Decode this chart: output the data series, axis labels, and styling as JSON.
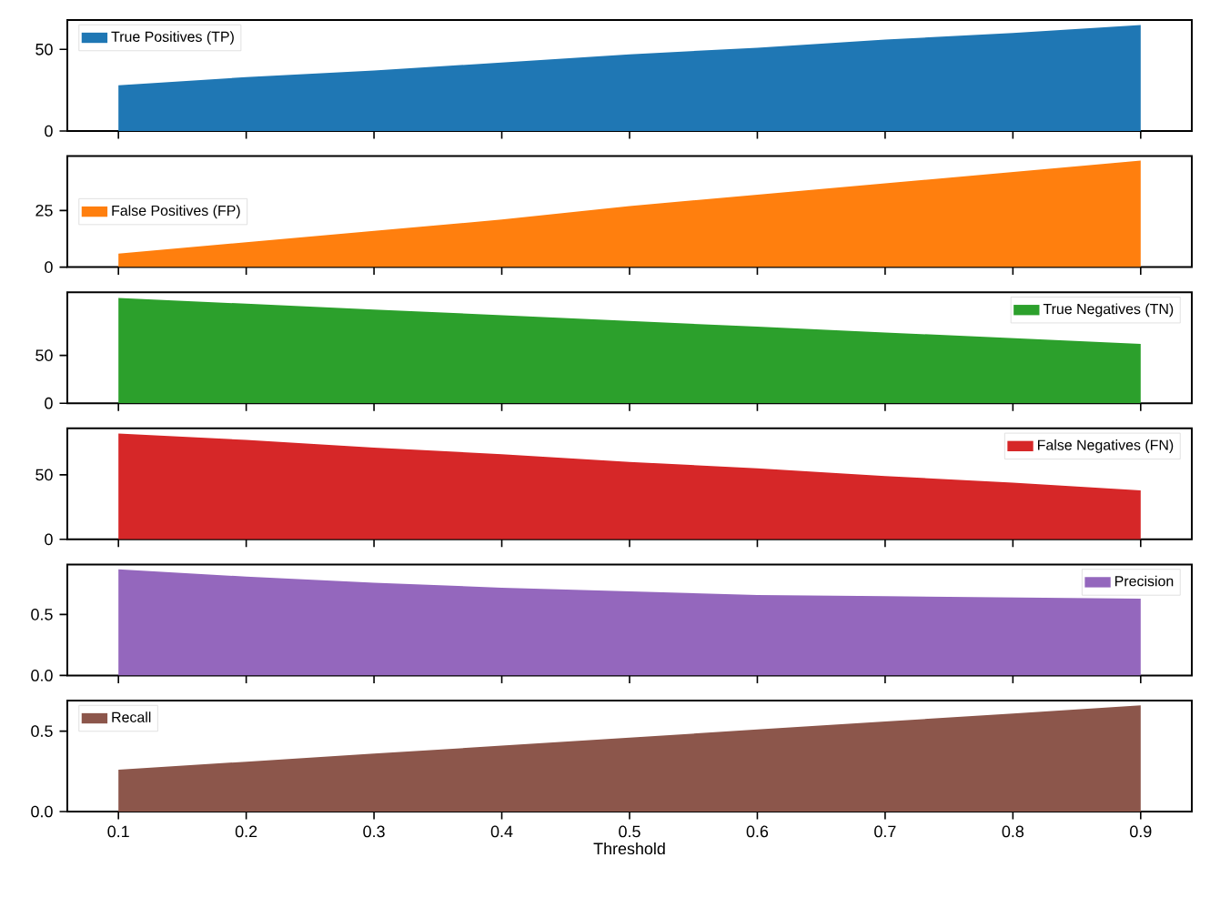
{
  "chart_data": [
    {
      "type": "area",
      "x": [
        0.1,
        0.2,
        0.3,
        0.4,
        0.5,
        0.6,
        0.7,
        0.8,
        0.9
      ],
      "xlim": [
        0.06,
        0.94
      ],
      "xticks": [
        0.1,
        0.2,
        0.3,
        0.4,
        0.5,
        0.6,
        0.7,
        0.8,
        0.9
      ],
      "ylim": [
        0,
        68
      ],
      "yticks": [
        0,
        50
      ],
      "tick_labels": "y",
      "legend": "upper left",
      "series": [
        {
          "name": "True Positives (TP)",
          "color": "#1f77b4",
          "values": [
            28,
            33,
            37,
            42,
            47,
            51,
            56,
            60,
            65
          ]
        }
      ]
    },
    {
      "type": "area",
      "x": [
        0.1,
        0.2,
        0.3,
        0.4,
        0.5,
        0.6,
        0.7,
        0.8,
        0.9
      ],
      "xlim": [
        0.06,
        0.94
      ],
      "xticks": [
        0.1,
        0.2,
        0.3,
        0.4,
        0.5,
        0.6,
        0.7,
        0.8,
        0.9
      ],
      "ylim": [
        0,
        49
      ],
      "yticks": [
        0,
        25
      ],
      "tick_labels": "y",
      "legend": "center left",
      "series": [
        {
          "name": "False Positives (FP)",
          "color": "#ff7f0e",
          "values": [
            6,
            11,
            16,
            21,
            27,
            32,
            37,
            42,
            47
          ]
        }
      ]
    },
    {
      "type": "area",
      "x": [
        0.1,
        0.2,
        0.3,
        0.4,
        0.5,
        0.6,
        0.7,
        0.8,
        0.9
      ],
      "xlim": [
        0.06,
        0.94
      ],
      "xticks": [
        0.1,
        0.2,
        0.3,
        0.4,
        0.5,
        0.6,
        0.7,
        0.8,
        0.9
      ],
      "ylim": [
        0,
        116
      ],
      "yticks": [
        0,
        50
      ],
      "tick_labels": "y",
      "legend": "upper right",
      "series": [
        {
          "name": "True Negatives (TN)",
          "color": "#2ca02c",
          "values": [
            110,
            104,
            98,
            92,
            86,
            80,
            74,
            68,
            62
          ]
        }
      ]
    },
    {
      "type": "area",
      "x": [
        0.1,
        0.2,
        0.3,
        0.4,
        0.5,
        0.6,
        0.7,
        0.8,
        0.9
      ],
      "xlim": [
        0.06,
        0.94
      ],
      "xticks": [
        0.1,
        0.2,
        0.3,
        0.4,
        0.5,
        0.6,
        0.7,
        0.8,
        0.9
      ],
      "ylim": [
        0,
        86
      ],
      "yticks": [
        0,
        50
      ],
      "tick_labels": "y",
      "legend": "upper right",
      "series": [
        {
          "name": "False Negatives (FN)",
          "color": "#d62728",
          "values": [
            82,
            77,
            71,
            66,
            60,
            55,
            49,
            44,
            38
          ]
        }
      ]
    },
    {
      "type": "area",
      "x": [
        0.1,
        0.2,
        0.3,
        0.4,
        0.5,
        0.6,
        0.7,
        0.8,
        0.9
      ],
      "xlim": [
        0.06,
        0.94
      ],
      "xticks": [
        0.1,
        0.2,
        0.3,
        0.4,
        0.5,
        0.6,
        0.7,
        0.8,
        0.9
      ],
      "ylim": [
        0,
        0.91
      ],
      "yticks": [
        {
          "value": 0,
          "label": "0.0"
        },
        0.5
      ],
      "tick_labels": "y",
      "legend": "upper right",
      "series": [
        {
          "name": "Precision",
          "color": "#9467bd",
          "values": [
            0.87,
            0.81,
            0.76,
            0.72,
            0.69,
            0.66,
            0.65,
            0.64,
            0.63
          ]
        }
      ]
    },
    {
      "type": "area",
      "x": [
        0.1,
        0.2,
        0.3,
        0.4,
        0.5,
        0.6,
        0.7,
        0.8,
        0.9
      ],
      "xlim": [
        0.06,
        0.94
      ],
      "xticks": [
        0.1,
        0.2,
        0.3,
        0.4,
        0.5,
        0.6,
        0.7,
        0.8,
        0.9
      ],
      "ylim": [
        0,
        0.69
      ],
      "yticks": [
        {
          "value": 0,
          "label": "0.0"
        },
        0.5
      ],
      "xlabel": "Threshold",
      "legend": "upper left",
      "series": [
        {
          "name": "Recall",
          "color": "#8c564b",
          "values": [
            0.26,
            0.31,
            0.36,
            0.41,
            0.46,
            0.51,
            0.56,
            0.61,
            0.66
          ]
        }
      ]
    }
  ]
}
